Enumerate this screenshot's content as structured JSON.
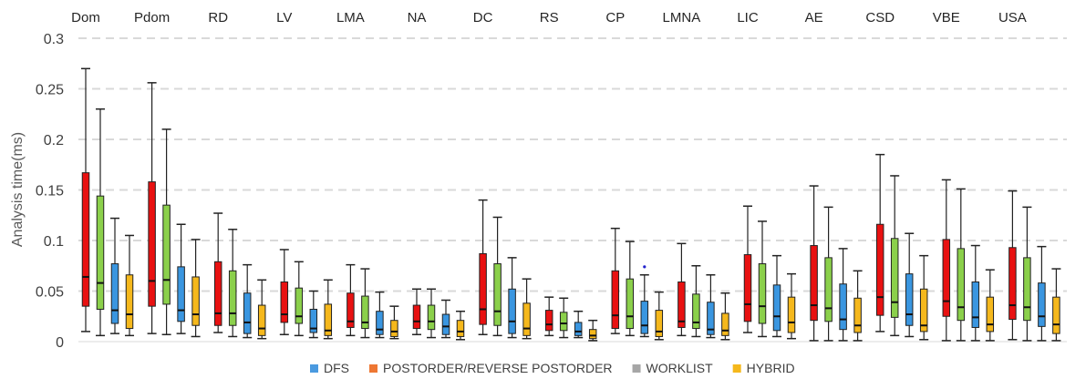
{
  "chart_data": {
    "type": "boxplot",
    "title": "",
    "ylabel": "Analysis time(ms)",
    "xlabel": "",
    "ylim": [
      0,
      0.3
    ],
    "yticks": [
      "0",
      "0.05",
      "0.1",
      "0.15",
      "0.2",
      "0.25",
      "0.3"
    ],
    "grid": "horizontal-dashed",
    "legend_position": "bottom",
    "categories": [
      "Dom",
      "Pdom",
      "RD",
      "LV",
      "LMA",
      "NA",
      "DC",
      "RS",
      "CP",
      "LMNA",
      "LIC",
      "AE",
      "CSD",
      "VBE",
      "USA"
    ],
    "legend": [
      {
        "label": "DFS",
        "color": "#4a9ae0"
      },
      {
        "label": "POSTORDER/REVERSE POSTORDER",
        "color": "#ee7733"
      },
      {
        "label": "WORKLIST",
        "color": "#a6a6a6"
      },
      {
        "label": "HYBRID",
        "color": "#f5b81c"
      }
    ],
    "series_colors": [
      "#e81111",
      "#8bd04b",
      "#3a96e0",
      "#f5b81c"
    ],
    "series": [
      {
        "whisker_low": [
          0.01,
          0.008,
          0.009,
          0.007,
          0.006,
          0.007,
          0.007,
          0.006,
          0.008,
          0.006,
          0.009,
          0.001,
          0.01,
          0.001,
          0.002
        ],
        "q1": [
          0.035,
          0.035,
          0.016,
          0.019,
          0.014,
          0.013,
          0.017,
          0.011,
          0.013,
          0.014,
          0.02,
          0.021,
          0.026,
          0.025,
          0.022
        ],
        "median": [
          0.064,
          0.06,
          0.028,
          0.027,
          0.02,
          0.02,
          0.032,
          0.017,
          0.026,
          0.02,
          0.037,
          0.036,
          0.044,
          0.04,
          0.036
        ],
        "q3": [
          0.167,
          0.158,
          0.079,
          0.059,
          0.048,
          0.036,
          0.087,
          0.031,
          0.07,
          0.059,
          0.086,
          0.095,
          0.116,
          0.101,
          0.093
        ],
        "whisker_high": [
          0.27,
          0.256,
          0.127,
          0.091,
          0.076,
          0.052,
          0.14,
          0.044,
          0.112,
          0.097,
          0.134,
          0.154,
          0.185,
          0.16,
          0.149
        ]
      },
      {
        "whisker_low": [
          0.006,
          0.007,
          0.005,
          0.006,
          0.004,
          0.004,
          0.006,
          0.004,
          0.006,
          0.005,
          0.005,
          0.001,
          0.006,
          0.001,
          0.001
        ],
        "q1": [
          0.032,
          0.037,
          0.016,
          0.018,
          0.013,
          0.012,
          0.016,
          0.011,
          0.013,
          0.013,
          0.018,
          0.02,
          0.024,
          0.021,
          0.021
        ],
        "median": [
          0.058,
          0.061,
          0.028,
          0.025,
          0.019,
          0.02,
          0.03,
          0.018,
          0.025,
          0.019,
          0.035,
          0.033,
          0.039,
          0.034,
          0.034
        ],
        "q3": [
          0.144,
          0.135,
          0.07,
          0.053,
          0.045,
          0.036,
          0.077,
          0.029,
          0.062,
          0.047,
          0.077,
          0.083,
          0.102,
          0.092,
          0.083
        ],
        "whisker_high": [
          0.23,
          0.21,
          0.111,
          0.079,
          0.072,
          0.052,
          0.123,
          0.043,
          0.099,
          0.075,
          0.119,
          0.133,
          0.164,
          0.151,
          0.133
        ]
      },
      {
        "whisker_low": [
          0.008,
          0.008,
          0.004,
          0.004,
          0.004,
          0.004,
          0.004,
          0.004,
          0.005,
          0.004,
          0.005,
          0.001,
          0.005,
          0.001,
          0.001
        ],
        "q1": [
          0.018,
          0.02,
          0.008,
          0.009,
          0.007,
          0.007,
          0.008,
          0.006,
          0.008,
          0.007,
          0.011,
          0.012,
          0.016,
          0.014,
          0.015
        ],
        "median": [
          0.031,
          0.031,
          0.019,
          0.013,
          0.012,
          0.015,
          0.02,
          0.01,
          0.016,
          0.012,
          0.025,
          0.022,
          0.027,
          0.024,
          0.025
        ],
        "q3": [
          0.077,
          0.074,
          0.048,
          0.032,
          0.03,
          0.027,
          0.052,
          0.019,
          0.04,
          0.039,
          0.056,
          0.057,
          0.067,
          0.059,
          0.058
        ],
        "whisker_high": [
          0.122,
          0.116,
          0.076,
          0.05,
          0.049,
          0.041,
          0.083,
          0.03,
          0.066,
          0.066,
          0.085,
          0.092,
          0.107,
          0.095,
          0.094
        ]
      },
      {
        "whisker_low": [
          0.006,
          0.005,
          0.003,
          0.003,
          0.003,
          0.002,
          0.003,
          0.001,
          0.002,
          0.002,
          0.003,
          0.001,
          0.002,
          0.001,
          0.001
        ],
        "q1": [
          0.013,
          0.016,
          0.006,
          0.006,
          0.005,
          0.005,
          0.006,
          0.003,
          0.005,
          0.006,
          0.009,
          0.009,
          0.01,
          0.01,
          0.008
        ],
        "median": [
          0.027,
          0.027,
          0.013,
          0.011,
          0.01,
          0.01,
          0.013,
          0.006,
          0.01,
          0.011,
          0.019,
          0.016,
          0.016,
          0.017,
          0.017
        ],
        "q3": [
          0.066,
          0.064,
          0.036,
          0.037,
          0.021,
          0.021,
          0.038,
          0.012,
          0.031,
          0.028,
          0.044,
          0.043,
          0.052,
          0.044,
          0.044
        ],
        "whisker_high": [
          0.105,
          0.101,
          0.061,
          0.061,
          0.035,
          0.03,
          0.062,
          0.021,
          0.049,
          0.048,
          0.067,
          0.07,
          0.085,
          0.071,
          0.072
        ]
      }
    ],
    "outliers": [
      {
        "category": "CP",
        "series_index": 2,
        "value": 0.074,
        "color": "#2222cc"
      }
    ]
  }
}
